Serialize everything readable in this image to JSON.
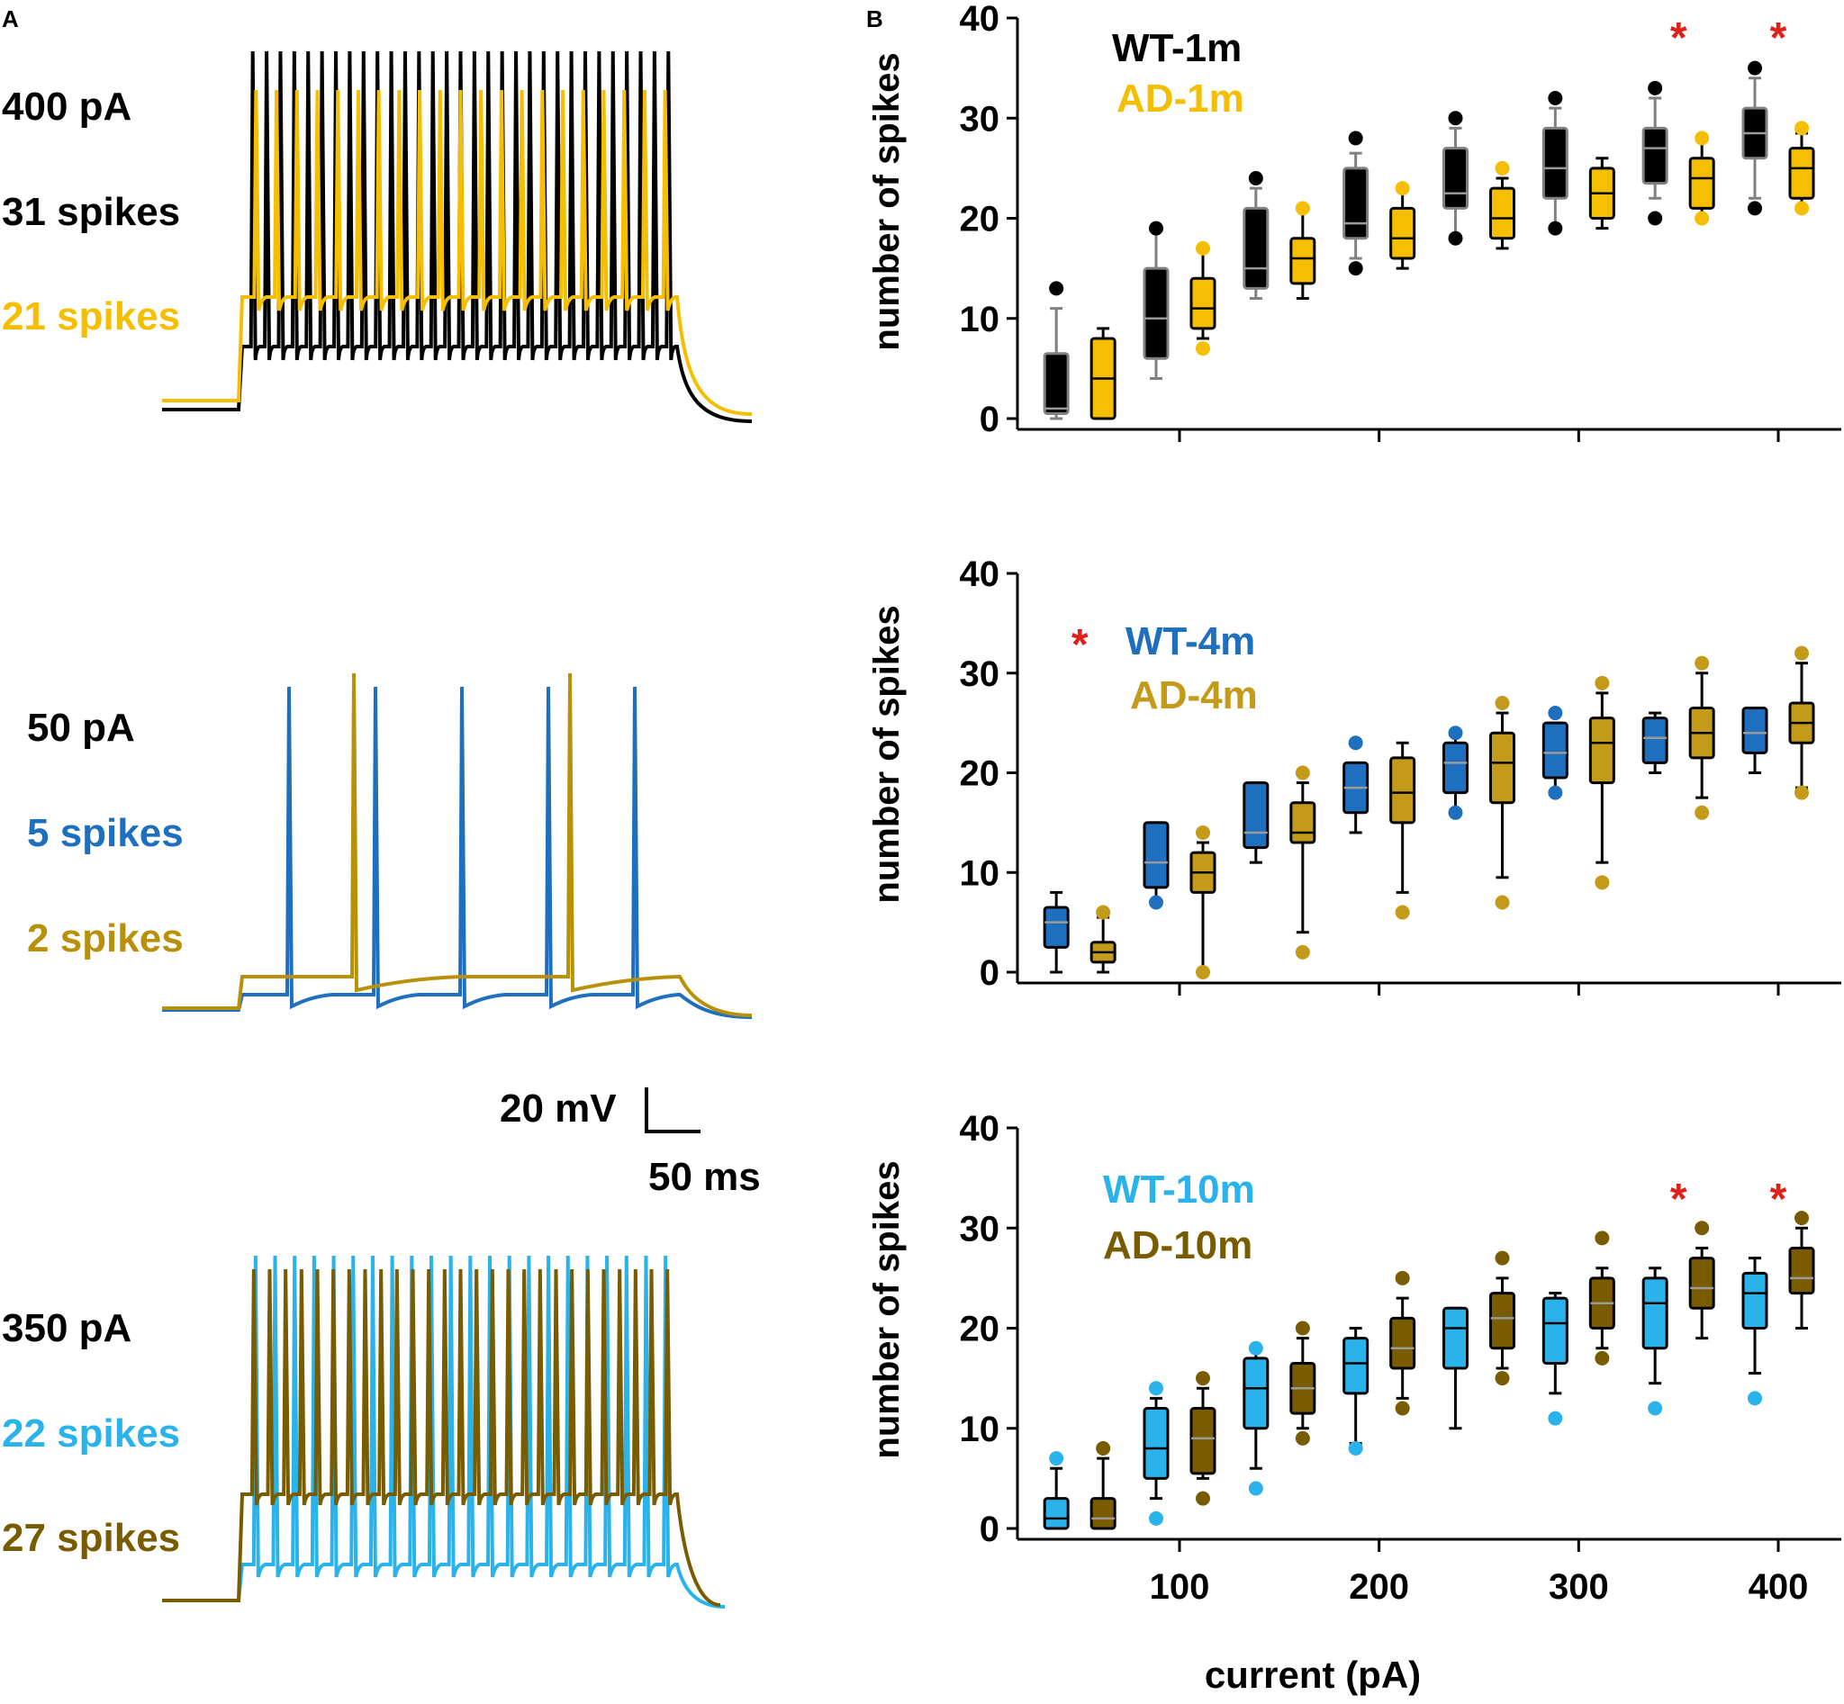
{
  "panel_a": {
    "label": "A",
    "traces": [
      {
        "current": "400 pA",
        "wt_spikes": "31 spikes",
        "ad_spikes": "21 spikes",
        "wt_n": 31,
        "ad_n": 21,
        "wt_color": "#000000",
        "ad_color": "#F5BE00"
      },
      {
        "current": "50 pA",
        "wt_spikes": "5 spikes",
        "ad_spikes": "2 spikes",
        "wt_n": 5,
        "ad_n": 2,
        "wt_color": "#1F6FBF",
        "ad_color": "#B8900A"
      },
      {
        "current": "350 pA",
        "wt_spikes": "22 spikes",
        "ad_spikes": "27 spikes",
        "wt_n": 22,
        "ad_n": 27,
        "wt_color": "#29B3EA",
        "ad_color": "#7A5C00"
      }
    ],
    "scale_bar": {
      "voltage": "20 mV",
      "time": "50 ms"
    }
  },
  "panel_b_label": "B",
  "chart_data": [
    {
      "type": "box",
      "ylabel": "number of spikes",
      "xlabel": "current (pA)",
      "ylim": [
        0,
        40
      ],
      "yticks": [
        "0",
        "10",
        "20",
        "30",
        "40"
      ],
      "xticks": [
        "100",
        "200",
        "300",
        "400"
      ],
      "categories": [
        50,
        100,
        150,
        200,
        250,
        300,
        350,
        400
      ],
      "significant": [
        350,
        400
      ],
      "series": [
        {
          "name": "WT-1m",
          "fill": "#000000",
          "stroke": "#808080",
          "outlier": "#000000",
          "boxes": [
            [
              0,
              0.5,
              1,
              6.5,
              11
            ],
            [
              4,
              6,
              10,
              15,
              19
            ],
            [
              12,
              13,
              15,
              21,
              23
            ],
            [
              16,
              18,
              19.5,
              25,
              26.5
            ],
            [
              18,
              21,
              22.5,
              27,
              29
            ],
            [
              19,
              22,
              25,
              29,
              31
            ],
            [
              22,
              23.5,
              27,
              29,
              32
            ],
            [
              22,
              26,
              28.5,
              31,
              34
            ]
          ],
          "outliers": [
            [
              13
            ],
            [
              19
            ],
            [
              24
            ],
            [
              15,
              28
            ],
            [
              18,
              30
            ],
            [
              19,
              32
            ],
            [
              20,
              33
            ],
            [
              21,
              35
            ]
          ]
        },
        {
          "name": "AD-1m",
          "fill": "#F5BE00",
          "stroke": "#000000",
          "outlier": "#F5BE00",
          "boxes": [
            [
              0,
              0,
              4,
              8,
              9
            ],
            [
              8,
              9,
              11,
              14,
              17
            ],
            [
              12,
              13.5,
              16,
              18,
              21
            ],
            [
              15,
              16,
              18,
              21,
              23
            ],
            [
              17,
              18,
              20,
              23,
              24
            ],
            [
              19,
              20,
              22.5,
              25,
              26
            ],
            [
              20,
              21,
              24,
              26,
              28
            ],
            [
              21,
              22,
              25,
              27,
              28.5
            ]
          ],
          "outliers": [
            [],
            [
              7,
              17
            ],
            [
              21
            ],
            [
              23
            ],
            [
              25
            ],
            [],
            [
              20,
              28
            ],
            [
              21,
              29
            ]
          ]
        }
      ],
      "legend": [
        "WT-1m",
        "AD-1m"
      ],
      "legend_colors": [
        "#000000",
        "#F5BE00"
      ]
    },
    {
      "type": "box",
      "ylabel": "number of spikes",
      "xlabel": "current (pA)",
      "ylim": [
        0,
        40
      ],
      "yticks": [
        "0",
        "10",
        "20",
        "30",
        "40"
      ],
      "xticks": [
        "100",
        "200",
        "300",
        "400"
      ],
      "categories": [
        50,
        100,
        150,
        200,
        250,
        300,
        350,
        400
      ],
      "significant": [
        50
      ],
      "series": [
        {
          "name": "WT-4m",
          "fill": "#1F6FBF",
          "stroke": "#000000",
          "outlier": "#1F6FBF",
          "boxes": [
            [
              0,
              2.5,
              5,
              6.5,
              8
            ],
            [
              7,
              8.5,
              11,
              15,
              15
            ],
            [
              11,
              12.5,
              14,
              19,
              19
            ],
            [
              14,
              16,
              18.5,
              21,
              21
            ],
            [
              16,
              18,
              21,
              23,
              24
            ],
            [
              18,
              19.5,
              22,
              25,
              25
            ],
            [
              20,
              21,
              23.5,
              25.5,
              26
            ],
            [
              20,
              22,
              24,
              26.5,
              26.5
            ]
          ],
          "outliers": [
            [],
            [
              7
            ],
            [],
            [
              23
            ],
            [
              16,
              24
            ],
            [
              18,
              26
            ],
            [],
            []
          ]
        },
        {
          "name": "AD-4m",
          "fill": "#C49A1A",
          "stroke": "#000000",
          "outlier": "#C49A1A",
          "boxes": [
            [
              0,
              1,
              2,
              3,
              5.5
            ],
            [
              0,
              8,
              10,
              12,
              13
            ],
            [
              4,
              13,
              14,
              17,
              19
            ],
            [
              8,
              15,
              18,
              21.5,
              23
            ],
            [
              9.5,
              17,
              21,
              24,
              26
            ],
            [
              11,
              19,
              23,
              25.5,
              28
            ],
            [
              17.5,
              21.5,
              24,
              26.5,
              30
            ],
            [
              18.5,
              23,
              25,
              27,
              31
            ]
          ],
          "outliers": [
            [
              6
            ],
            [
              0,
              14
            ],
            [
              2,
              20
            ],
            [
              6
            ],
            [
              7,
              27
            ],
            [
              9,
              29
            ],
            [
              16,
              31
            ],
            [
              18,
              32
            ]
          ]
        }
      ],
      "legend": [
        "WT-4m",
        "AD-4m"
      ],
      "legend_colors": [
        "#1F6FBF",
        "#C49A1A"
      ]
    },
    {
      "type": "box",
      "ylabel": "number of spikes",
      "xlabel": "current (pA)",
      "ylim": [
        0,
        40
      ],
      "yticks": [
        "0",
        "10",
        "20",
        "30",
        "40"
      ],
      "xticks": [
        "100",
        "200",
        "300",
        "400"
      ],
      "categories": [
        50,
        100,
        150,
        200,
        250,
        300,
        350,
        400
      ],
      "significant": [
        350,
        400
      ],
      "series": [
        {
          "name": "WT-10m",
          "fill": "#29B3EA",
          "stroke": "#000000",
          "outlier": "#29B3EA",
          "boxes": [
            [
              0,
              0,
              1,
              3,
              6
            ],
            [
              3,
              5,
              8,
              12,
              13
            ],
            [
              6,
              10,
              14,
              17,
              18
            ],
            [
              8.5,
              13.5,
              16.5,
              19,
              20
            ],
            [
              10,
              16,
              20,
              22,
              22
            ],
            [
              13.5,
              16.5,
              20.5,
              23,
              23.5
            ],
            [
              14.5,
              18,
              22.5,
              25,
              26
            ],
            [
              15.5,
              20,
              23.5,
              25.5,
              27
            ]
          ],
          "outliers": [
            [
              7
            ],
            [
              1,
              14
            ],
            [
              4,
              18
            ],
            [
              8
            ],
            [],
            [
              11
            ],
            [
              12
            ],
            [
              13
            ]
          ]
        },
        {
          "name": "AD-10m",
          "fill": "#7A5C00",
          "stroke": "#000000",
          "outlier": "#7A5C00",
          "boxes": [
            [
              0,
              0,
              1,
              3,
              7
            ],
            [
              5,
              5.5,
              9,
              12,
              14
            ],
            [
              10,
              11.5,
              14,
              16.5,
              19
            ],
            [
              13,
              16,
              18,
              21,
              23
            ],
            [
              16,
              18,
              21,
              23.5,
              25
            ],
            [
              18,
              20,
              22.5,
              25,
              26
            ],
            [
              19,
              22,
              24,
              27,
              28
            ],
            [
              20,
              23.5,
              25,
              28,
              30
            ]
          ],
          "outliers": [
            [
              8
            ],
            [
              3,
              15
            ],
            [
              9,
              20
            ],
            [
              12,
              25
            ],
            [
              15,
              27
            ],
            [
              17,
              29
            ],
            [
              30
            ],
            [
              31
            ]
          ]
        }
      ],
      "legend": [
        "WT-10m",
        "AD-10m"
      ],
      "legend_colors": [
        "#29B3EA",
        "#7A5C00"
      ]
    }
  ]
}
